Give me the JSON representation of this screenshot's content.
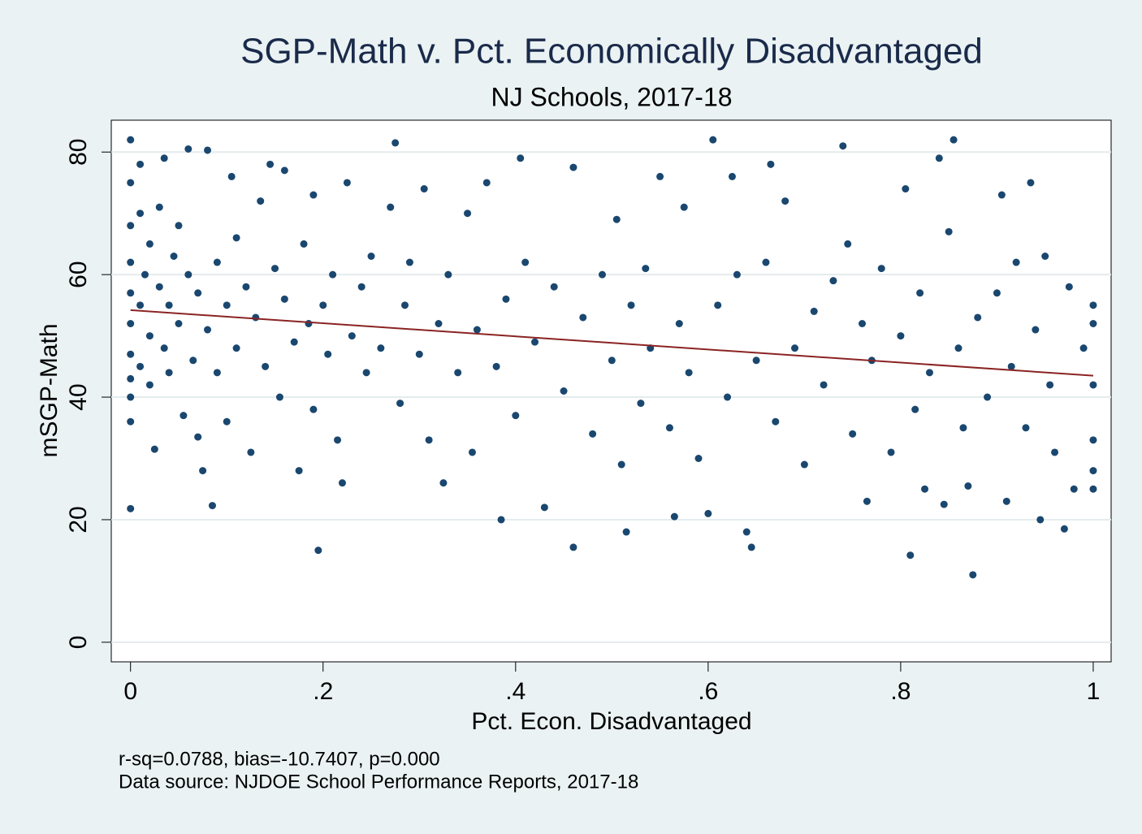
{
  "chart_data": {
    "type": "scatter",
    "title": "SGP-Math v. Pct. Economically Disadvantaged",
    "subtitle": "NJ Schools, 2017-18",
    "x_label": "Pct. Econ. Disadvantaged",
    "y_label": "mSGP-Math",
    "notes": [
      "r-sq=0.0788, bias=-10.7407, p=0.000",
      "Data source: NJDOE School Performance Reports, 2017-18"
    ],
    "xlim": [
      -0.02,
      1.0186
    ],
    "ylim": [
      -3.2,
      85.2
    ],
    "xticks": [
      0,
      {
        "value": 0.2,
        "label": ".2"
      },
      {
        "value": 0.4,
        "label": ".4"
      },
      {
        "value": 0.6,
        "label": ".6"
      },
      {
        "value": 0.8,
        "label": ".8"
      },
      1
    ],
    "yticks": [
      0,
      20,
      40,
      60,
      80
    ],
    "grid": true,
    "color": "#1a476f",
    "x": [
      0,
      0,
      0,
      0,
      0,
      0,
      0,
      0,
      0,
      0,
      0,
      0.01,
      0.01,
      0.01,
      0.01,
      0.015,
      0.02,
      0.02,
      0.02,
      0.025,
      0.03,
      0.03,
      0.035,
      0.035,
      0.04,
      0.04,
      0.045,
      0.05,
      0.05,
      0.055,
      0.06,
      0.06,
      0.065,
      0.07,
      0.07,
      0.075,
      0.08,
      0.08,
      0.085,
      0.09,
      0.09,
      0.1,
      0.1,
      0.105,
      0.11,
      0.11,
      0.12,
      0.125,
      0.13,
      0.135,
      0.14,
      0.145,
      0.15,
      0.155,
      0.16,
      0.16,
      0.17,
      0.175,
      0.18,
      0.185,
      0.19,
      0.19,
      0.195,
      0.2,
      0.205,
      0.21,
      0.215,
      0.22,
      0.225,
      0.23,
      0.24,
      0.245,
      0.25,
      0.26,
      0.27,
      0.275,
      0.28,
      0.285,
      0.29,
      0.3,
      0.305,
      0.31,
      0.32,
      0.325,
      0.33,
      0.34,
      0.35,
      0.355,
      0.36,
      0.37,
      0.38,
      0.385,
      0.39,
      0.4,
      0.405,
      0.41,
      0.42,
      0.43,
      0.44,
      0.45,
      0.46,
      0.46,
      0.47,
      0.48,
      0.49,
      0.5,
      0.505,
      0.51,
      0.515,
      0.52,
      0.53,
      0.535,
      0.54,
      0.55,
      0.56,
      0.565,
      0.57,
      0.575,
      0.58,
      0.59,
      0.6,
      0.605,
      0.61,
      0.62,
      0.625,
      0.63,
      0.64,
      0.645,
      0.65,
      0.66,
      0.665,
      0.67,
      0.68,
      0.69,
      0.7,
      0.71,
      0.72,
      0.73,
      0.74,
      0.745,
      0.75,
      0.76,
      0.765,
      0.77,
      0.78,
      0.79,
      0.8,
      0.805,
      0.81,
      0.815,
      0.82,
      0.825,
      0.83,
      0.84,
      0.845,
      0.85,
      0.855,
      0.86,
      0.865,
      0.87,
      0.875,
      0.88,
      0.89,
      0.9,
      0.905,
      0.91,
      0.915,
      0.92,
      0.93,
      0.935,
      0.94,
      0.945,
      0.95,
      0.955,
      0.96,
      0.97,
      0.975,
      0.98,
      0.99,
      1,
      1,
      1,
      1,
      1,
      1
    ],
    "values": [
      82,
      21.8,
      75,
      68,
      62,
      57,
      52,
      47,
      43,
      40,
      36,
      78,
      70,
      55,
      45,
      60,
      65,
      50,
      42,
      31.5,
      58,
      71,
      48,
      79,
      55,
      44,
      63,
      52,
      68,
      37,
      80.5,
      60,
      46,
      57,
      33.5,
      28,
      80.3,
      51,
      22.3,
      62,
      44,
      55,
      36,
      76,
      48,
      66,
      58,
      31,
      53,
      72,
      45,
      78,
      61,
      40,
      56,
      77,
      49,
      28,
      65,
      52,
      73,
      38,
      15,
      55,
      47,
      60,
      33,
      26,
      75,
      50,
      58,
      44,
      63,
      48,
      71,
      81.5,
      39,
      55,
      62,
      47,
      74,
      33,
      52,
      26,
      60,
      44,
      70,
      31,
      51,
      75,
      45,
      20,
      56,
      37,
      79,
      62,
      49,
      22,
      58,
      41,
      77.5,
      15.5,
      53,
      34,
      60,
      46,
      69,
      29,
      18,
      55,
      39,
      61,
      48,
      76,
      35,
      20.5,
      52,
      71,
      44,
      30,
      21,
      82,
      55,
      40,
      76,
      60,
      18,
      15.5,
      46,
      62,
      78,
      36,
      72,
      48,
      29,
      54,
      42,
      59,
      81,
      65,
      34,
      52,
      23,
      46,
      61,
      31,
      50,
      74,
      14.2,
      38,
      57,
      25,
      44,
      79,
      22.5,
      67,
      82,
      48,
      35,
      25.5,
      11,
      53,
      40,
      57,
      73,
      23,
      45,
      62,
      35,
      75,
      51,
      20,
      63,
      42,
      31,
      18.5,
      58,
      25,
      48,
      55,
      42,
      33,
      28,
      25,
      52
    ],
    "fit": {
      "x": [
        0,
        1
      ],
      "values": [
        54.2,
        43.5
      ],
      "color": "#8b2323"
    }
  }
}
